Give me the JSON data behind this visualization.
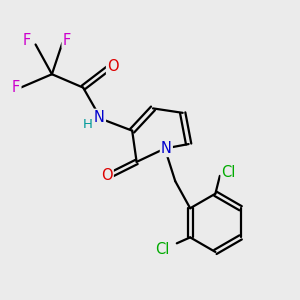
{
  "bg_color": "#ebebeb",
  "atom_colors": {
    "C": "#000000",
    "N": "#0000cc",
    "O": "#dd0000",
    "F": "#cc00cc",
    "Cl": "#00aa00",
    "H": "#009999"
  },
  "bond_color": "#000000",
  "bond_width": 1.6,
  "font_size_atoms": 10.5
}
